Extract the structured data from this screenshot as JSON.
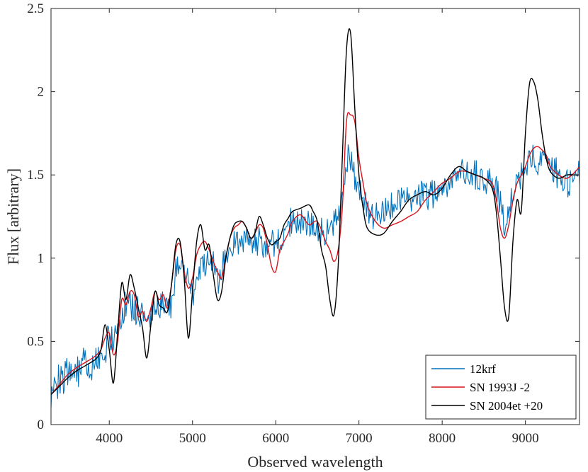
{
  "chart_data": {
    "type": "line",
    "title": "",
    "xlabel": "Observed wavelength",
    "ylabel": "Flux [arbitrary]",
    "xlim": [
      3300,
      9650
    ],
    "ylim": [
      0,
      2.5
    ],
    "xticks": [
      4000,
      5000,
      6000,
      7000,
      8000,
      9000
    ],
    "yticks": [
      0,
      0.5,
      1,
      1.5,
      2,
      2.5
    ],
    "xtick_labels": [
      "4000",
      "5000",
      "6000",
      "7000",
      "8000",
      "9000"
    ],
    "ytick_labels": [
      "0",
      "0.5",
      "1",
      "1.5",
      "2",
      "2.5"
    ],
    "legend_position": "bottom-right",
    "series": [
      {
        "name": "12krf",
        "color": "#0072BD",
        "style": "noisy",
        "noise": 0.09,
        "x": [
          3300,
          3400,
          3500,
          3600,
          3700,
          3800,
          3900,
          4000,
          4050,
          4100,
          4150,
          4200,
          4300,
          4400,
          4450,
          4500,
          4550,
          4600,
          4700,
          4750,
          4800,
          4850,
          4900,
          4950,
          5000,
          5050,
          5100,
          5150,
          5200,
          5250,
          5300,
          5350,
          5400,
          5500,
          5600,
          5700,
          5800,
          5900,
          6000,
          6100,
          6200,
          6300,
          6400,
          6500,
          6600,
          6700,
          6750,
          6800,
          6850,
          6900,
          6950,
          7000,
          7100,
          7200,
          7300,
          7400,
          7500,
          7600,
          7700,
          7800,
          7900,
          8000,
          8100,
          8200,
          8300,
          8400,
          8500,
          8600,
          8700,
          8750,
          8800,
          8850,
          8900,
          9000,
          9100,
          9200,
          9300,
          9400,
          9500,
          9600,
          9650
        ],
        "values": [
          0.18,
          0.26,
          0.3,
          0.33,
          0.35,
          0.38,
          0.42,
          0.5,
          0.52,
          0.6,
          0.68,
          0.72,
          0.7,
          0.65,
          0.6,
          0.62,
          0.7,
          0.72,
          0.7,
          0.72,
          0.95,
          0.93,
          0.9,
          0.85,
          0.78,
          0.8,
          0.95,
          0.98,
          1.0,
          0.98,
          0.85,
          0.9,
          1.05,
          1.1,
          1.12,
          1.08,
          1.1,
          1.08,
          1.1,
          1.12,
          1.25,
          1.22,
          1.2,
          1.18,
          1.15,
          1.2,
          1.25,
          1.4,
          1.6,
          1.6,
          1.5,
          1.42,
          1.3,
          1.25,
          1.3,
          1.32,
          1.35,
          1.35,
          1.38,
          1.38,
          1.38,
          1.42,
          1.45,
          1.5,
          1.52,
          1.5,
          1.48,
          1.45,
          1.35,
          1.2,
          1.3,
          1.35,
          1.45,
          1.55,
          1.6,
          1.58,
          1.55,
          1.5,
          1.45,
          1.5,
          1.5
        ]
      },
      {
        "name": "SN 1993J -2",
        "color": "#D7141A",
        "style": "smooth",
        "x": [
          3300,
          3400,
          3500,
          3600,
          3700,
          3800,
          3850,
          3900,
          3950,
          4000,
          4050,
          4100,
          4150,
          4200,
          4250,
          4300,
          4350,
          4400,
          4450,
          4500,
          4550,
          4600,
          4650,
          4700,
          4750,
          4800,
          4850,
          4900,
          4950,
          5000,
          5050,
          5100,
          5150,
          5200,
          5250,
          5300,
          5350,
          5400,
          5450,
          5500,
          5550,
          5600,
          5650,
          5700,
          5750,
          5800,
          5850,
          5900,
          5950,
          6000,
          6050,
          6100,
          6150,
          6200,
          6300,
          6400,
          6500,
          6600,
          6650,
          6700,
          6750,
          6800,
          6850,
          6900,
          6950,
          7000,
          7050,
          7100,
          7200,
          7300,
          7400,
          7500,
          7600,
          7700,
          7800,
          7900,
          8000,
          8100,
          8200,
          8300,
          8400,
          8500,
          8600,
          8650,
          8700,
          8750,
          8800,
          8850,
          8900,
          8950,
          9000,
          9050,
          9100,
          9150,
          9200,
          9250,
          9300,
          9400,
          9500,
          9600,
          9650
        ],
        "values": [
          0.18,
          0.24,
          0.3,
          0.34,
          0.37,
          0.4,
          0.42,
          0.45,
          0.52,
          0.55,
          0.42,
          0.5,
          0.75,
          0.72,
          0.8,
          0.78,
          0.65,
          0.68,
          0.62,
          0.7,
          0.8,
          0.75,
          0.78,
          0.7,
          0.85,
          1.05,
          1.08,
          0.92,
          0.82,
          0.88,
          1.02,
          1.08,
          1.1,
          1.05,
          0.98,
          0.92,
          0.88,
          1.0,
          1.12,
          1.18,
          1.2,
          1.22,
          1.18,
          1.12,
          1.15,
          1.2,
          1.18,
          1.08,
          0.95,
          0.92,
          1.05,
          1.1,
          1.15,
          1.22,
          1.26,
          1.2,
          1.22,
          1.1,
          1.05,
          0.98,
          1.05,
          1.3,
          1.82,
          1.86,
          1.82,
          1.6,
          1.45,
          1.32,
          1.22,
          1.18,
          1.2,
          1.22,
          1.25,
          1.28,
          1.35,
          1.4,
          1.45,
          1.48,
          1.52,
          1.52,
          1.5,
          1.48,
          1.45,
          1.35,
          1.18,
          1.12,
          1.2,
          1.35,
          1.45,
          1.5,
          1.55,
          1.62,
          1.66,
          1.67,
          1.65,
          1.62,
          1.55,
          1.5,
          1.48,
          1.52,
          1.55
        ]
      },
      {
        "name": "SN 2004et +20",
        "color": "#000000",
        "style": "smooth",
        "x": [
          3300,
          3400,
          3500,
          3600,
          3700,
          3800,
          3850,
          3900,
          3950,
          4000,
          4050,
          4100,
          4150,
          4200,
          4250,
          4300,
          4350,
          4400,
          4450,
          4500,
          4550,
          4600,
          4650,
          4700,
          4750,
          4800,
          4850,
          4900,
          4950,
          5000,
          5050,
          5100,
          5150,
          5200,
          5250,
          5300,
          5350,
          5400,
          5450,
          5500,
          5550,
          5600,
          5650,
          5700,
          5750,
          5800,
          5850,
          5900,
          5950,
          6000,
          6050,
          6100,
          6150,
          6200,
          6300,
          6400,
          6450,
          6500,
          6550,
          6600,
          6650,
          6700,
          6750,
          6800,
          6850,
          6900,
          6950,
          7000,
          7050,
          7100,
          7200,
          7300,
          7400,
          7500,
          7600,
          7700,
          7800,
          7900,
          8000,
          8100,
          8200,
          8300,
          8400,
          8500,
          8600,
          8650,
          8700,
          8750,
          8800,
          8850,
          8900,
          8950,
          9000,
          9050,
          9100,
          9150,
          9200,
          9250,
          9300,
          9400,
          9500,
          9600,
          9650
        ],
        "values": [
          0.18,
          0.23,
          0.28,
          0.32,
          0.35,
          0.38,
          0.4,
          0.45,
          0.6,
          0.45,
          0.25,
          0.55,
          0.85,
          0.75,
          0.9,
          0.82,
          0.7,
          0.58,
          0.4,
          0.6,
          0.8,
          0.72,
          0.7,
          0.68,
          0.85,
          1.08,
          1.1,
          0.88,
          0.52,
          0.8,
          1.1,
          1.2,
          1.05,
          1.08,
          0.9,
          0.75,
          0.8,
          1.0,
          1.12,
          1.2,
          1.22,
          1.22,
          1.18,
          1.12,
          1.15,
          1.25,
          1.2,
          1.12,
          1.08,
          1.1,
          1.12,
          1.2,
          1.24,
          1.28,
          1.3,
          1.32,
          1.28,
          1.22,
          1.05,
          0.95,
          0.75,
          0.66,
          0.95,
          1.6,
          2.25,
          2.35,
          1.9,
          1.5,
          1.3,
          1.18,
          1.14,
          1.15,
          1.22,
          1.28,
          1.35,
          1.38,
          1.4,
          1.38,
          1.42,
          1.5,
          1.55,
          1.52,
          1.5,
          1.48,
          1.42,
          1.28,
          1.0,
          0.7,
          0.65,
          1.1,
          1.35,
          1.28,
          1.75,
          2.05,
          2.06,
          1.95,
          1.75,
          1.6,
          1.52,
          1.48,
          1.5,
          1.5,
          1.5
        ]
      }
    ]
  }
}
